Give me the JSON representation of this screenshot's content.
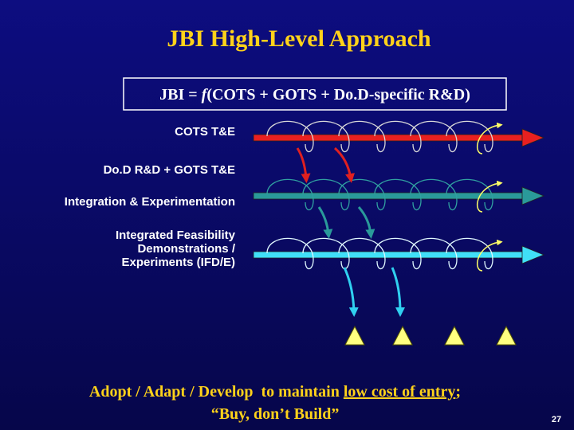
{
  "title": "JBI High-Level Approach",
  "formula": {
    "prefix": "JBI = ",
    "function": "f",
    "argument": "(COTS + GOTS + Do.D-specific R&D)"
  },
  "labels": [
    [
      "COTS T&E"
    ],
    [
      "Do.D R&D + GOTS T&E"
    ],
    [
      "Integration & Experimentation"
    ],
    [
      "Integrated Feasibility",
      "Demonstrations /",
      "Experiments (IFD/E)"
    ]
  ],
  "footer": {
    "line1": {
      "lead": "Adopt / Adapt / Develop  to maintain ",
      "underlined": "low cost of entry",
      "trail": ";"
    },
    "line2": "“Buy, don’t Build”"
  },
  "page_number": "27"
}
